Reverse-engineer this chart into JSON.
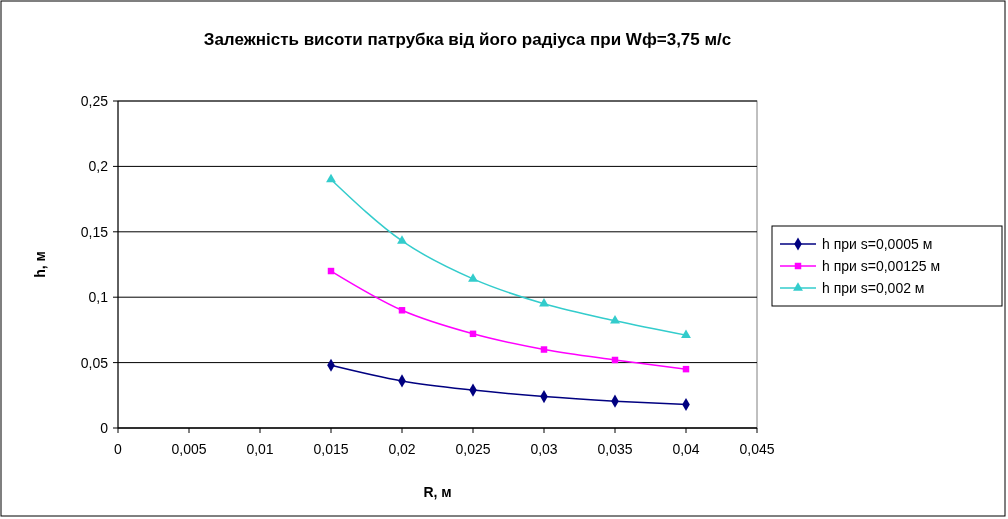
{
  "chart_data": {
    "type": "line",
    "title": "Залежність висоти патрубка від його радіуса при Wф=3,75 м/с",
    "xlabel": "R, м",
    "ylabel": "h, м",
    "x": [
      0.015,
      0.02,
      0.025,
      0.03,
      0.035,
      0.04
    ],
    "series": [
      {
        "name": "h при s=0,0005 м",
        "color": "#000080",
        "marker": "diamond",
        "values": [
          0.048,
          0.036,
          0.029,
          0.024,
          0.0205,
          0.018
        ]
      },
      {
        "name": "h при s=0,00125 м",
        "color": "#ff00ff",
        "marker": "square",
        "values": [
          0.12,
          0.09,
          0.072,
          0.06,
          0.052,
          0.045
        ]
      },
      {
        "name": "h при s=0,002 м",
        "color": "#33cccc",
        "marker": "triangle",
        "values": [
          0.19,
          0.143,
          0.114,
          0.095,
          0.082,
          0.071
        ]
      }
    ],
    "xlim": [
      0,
      0.045
    ],
    "xticks": [
      0,
      {
        "value": 0.005,
        "label": "0,005"
      },
      {
        "value": 0.01,
        "label": "0,01"
      },
      {
        "value": 0.015,
        "label": "0,015"
      },
      {
        "value": 0.02,
        "label": "0,02"
      },
      {
        "value": 0.025,
        "label": "0,025"
      },
      {
        "value": 0.03,
        "label": "0,03"
      },
      {
        "value": 0.035,
        "label": "0,035"
      },
      {
        "value": 0.04,
        "label": "0,04"
      },
      {
        "value": 0.045,
        "label": "0,045"
      }
    ],
    "ylim": [
      0,
      0.25
    ],
    "yticks": [
      0,
      {
        "value": 0.05,
        "label": "0,05"
      },
      {
        "value": 0.1,
        "label": "0,1"
      },
      {
        "value": 0.15,
        "label": "0,15"
      },
      {
        "value": 0.2,
        "label": "0,2"
      },
      {
        "value": 0.25,
        "label": "0,25"
      }
    ],
    "grid": "y",
    "legend": "right",
    "line_style": "solid"
  }
}
